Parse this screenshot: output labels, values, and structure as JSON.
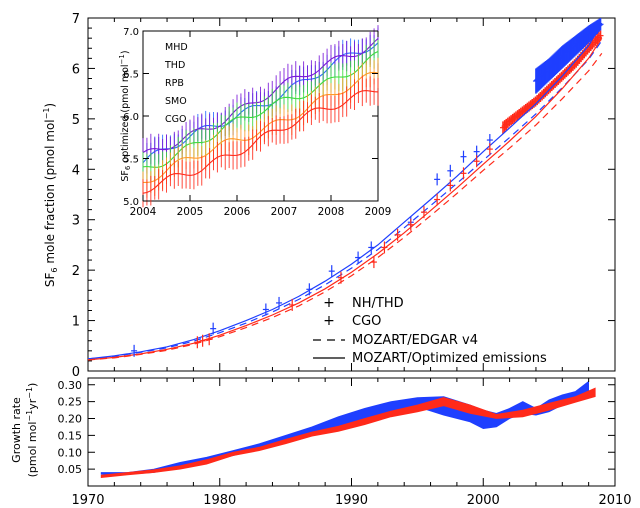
{
  "chart_data": [
    {
      "panel": "main",
      "type": "line",
      "ylabel_main": "SF",
      "ylabel_sub": "6",
      "ylabel_rest": " mole fraction (pmol mol",
      "ylabel_sup": "−1",
      "ylabel_close": ")",
      "xlim": [
        1970,
        2010
      ],
      "ylim": [
        0,
        7
      ],
      "yticks": [
        "0",
        "1",
        "2",
        "3",
        "4",
        "5",
        "6",
        "7"
      ],
      "colors": {
        "nh": "#1f3fff",
        "cgo": "#ff2a1a",
        "model": "#000000"
      },
      "legend": [
        {
          "label": "NH/THD",
          "marker": "+",
          "color": "#1f3fff"
        },
        {
          "label": "CGO",
          "marker": "+",
          "color": "#ff2a1a"
        },
        {
          "label": "MOZART/EDGAR v4",
          "marker": "dashed",
          "color": "#000000"
        },
        {
          "label": "MOZART/Optimized emissions",
          "marker": "solid",
          "color": "#000000"
        }
      ],
      "series": [
        {
          "key": "nh_opt",
          "style": "solid",
          "color": "#1f3fff",
          "x": [
            1970,
            1972,
            1974,
            1976,
            1978,
            1980,
            1982,
            1984,
            1986,
            1988,
            1990,
            1992,
            1994,
            1996,
            1998,
            2000,
            2002,
            2004,
            2006,
            2008,
            2009
          ],
          "y": [
            0.24,
            0.3,
            0.38,
            0.48,
            0.62,
            0.8,
            1.0,
            1.22,
            1.48,
            1.78,
            2.12,
            2.5,
            2.95,
            3.4,
            3.86,
            4.35,
            4.82,
            5.3,
            5.85,
            6.45,
            6.9
          ]
        },
        {
          "key": "nh_edgar",
          "style": "dashed",
          "color": "#1f3fff",
          "x": [
            1970,
            1972,
            1974,
            1976,
            1978,
            1980,
            1982,
            1984,
            1986,
            1988,
            1990,
            1992,
            1994,
            1996,
            1998,
            2000,
            2002,
            2004,
            2006,
            2008,
            2009
          ],
          "y": [
            0.24,
            0.29,
            0.37,
            0.46,
            0.59,
            0.76,
            0.95,
            1.17,
            1.42,
            1.71,
            2.04,
            2.41,
            2.84,
            3.28,
            3.72,
            4.18,
            4.63,
            5.1,
            5.62,
            6.18,
            6.55
          ]
        },
        {
          "key": "cgo_opt",
          "style": "solid",
          "color": "#ff2a1a",
          "x": [
            1970,
            1972,
            1974,
            1976,
            1978,
            1980,
            1982,
            1984,
            1986,
            1988,
            1990,
            1992,
            1994,
            1996,
            1998,
            2000,
            2002,
            2004,
            2006,
            2008,
            2009
          ],
          "y": [
            0.22,
            0.27,
            0.34,
            0.43,
            0.55,
            0.71,
            0.9,
            1.11,
            1.35,
            1.63,
            1.96,
            2.33,
            2.74,
            3.18,
            3.63,
            4.1,
            4.56,
            5.05,
            5.6,
            6.2,
            6.6
          ]
        },
        {
          "key": "cgo_edgar",
          "style": "dashed",
          "color": "#ff2a1a",
          "x": [
            1970,
            1972,
            1974,
            1976,
            1978,
            1980,
            1982,
            1984,
            1986,
            1988,
            1990,
            1992,
            1994,
            1996,
            1998,
            2000,
            2002,
            2004,
            2006,
            2008,
            2009
          ],
          "y": [
            0.22,
            0.26,
            0.33,
            0.41,
            0.53,
            0.68,
            0.86,
            1.06,
            1.29,
            1.57,
            1.89,
            2.25,
            2.65,
            3.08,
            3.52,
            3.98,
            4.42,
            4.88,
            5.4,
            5.95,
            6.3
          ]
        }
      ],
      "obs_nh": {
        "x": [
          1973.5,
          1979.5,
          1983.5,
          1984.5,
          1986.8,
          1988.5,
          1990.5,
          1991.5,
          1994.5,
          1996.5,
          1997.5,
          1998.5,
          1999.5,
          2000.5
        ],
        "y": [
          0.4,
          0.84,
          1.22,
          1.35,
          1.62,
          1.98,
          2.25,
          2.45,
          2.95,
          3.8,
          3.97,
          4.25,
          4.35,
          4.58
        ]
      },
      "obs_cgo": {
        "x": [
          1978.3,
          1978.7,
          1979.2,
          1985.5,
          1989.2,
          1991.7,
          1992.5,
          1993.5,
          1994.5,
          1995.5,
          1996.5,
          1997.5,
          1998.5,
          1999.5,
          2000.5
        ],
        "y": [
          0.57,
          0.6,
          0.63,
          1.31,
          1.85,
          2.16,
          2.45,
          2.7,
          2.9,
          3.15,
          3.4,
          3.68,
          3.92,
          4.16,
          4.4
        ]
      },
      "obs_nh_band": {
        "x": [
          2004,
          2005,
          2006,
          2007,
          2008,
          2008.9
        ],
        "lo": [
          5.5,
          5.75,
          6.0,
          6.25,
          6.5,
          6.75
        ],
        "hi": [
          6.0,
          6.2,
          6.45,
          6.65,
          6.85,
          7.0
        ]
      },
      "obs_cgo_band": {
        "x": [
          2001.5,
          2002,
          2003,
          2004,
          2005,
          2006,
          2007,
          2008,
          2008.9
        ],
        "lo": [
          4.7,
          4.85,
          5.05,
          5.25,
          5.5,
          5.75,
          6.0,
          6.3,
          6.55
        ],
        "hi": [
          4.95,
          5.05,
          5.25,
          5.45,
          5.7,
          5.95,
          6.2,
          6.5,
          6.75
        ]
      }
    },
    {
      "panel": "inset",
      "type": "line",
      "ylabel_main": "SF",
      "ylabel_sub": "6",
      "ylabel_rest": " optimized (pmol mol",
      "ylabel_sup": "−1",
      "ylabel_close": ")",
      "xlim": [
        2004,
        2009
      ],
      "ylim": [
        5.0,
        7.0
      ],
      "xticks": [
        "2004",
        "2005",
        "2006",
        "2007",
        "2008",
        "2009"
      ],
      "yticks": [
        "5.0",
        "5.5",
        "6.0",
        "6.5",
        "7.0"
      ],
      "legend": [
        {
          "label": "MHD",
          "color": "#2a6cff"
        },
        {
          "label": "THD",
          "color": "#7a18d8"
        },
        {
          "label": "RPB",
          "color": "#3ddc3d"
        },
        {
          "label": "SMO",
          "color": "#ff9a2a"
        },
        {
          "label": "CGO",
          "color": "#ff2a1a"
        }
      ],
      "series": [
        {
          "name": "MHD",
          "color": "#2a6cff",
          "start": 5.45,
          "end": 6.85
        },
        {
          "name": "THD",
          "color": "#7a18d8",
          "start": 5.5,
          "end": 6.9
        },
        {
          "name": "RPB",
          "color": "#3ddc3d",
          "start": 5.38,
          "end": 6.7
        },
        {
          "name": "SMO",
          "color": "#ff9a2a",
          "start": 5.22,
          "end": 6.48
        },
        {
          "name": "CGO",
          "color": "#ff2a1a",
          "start": 5.1,
          "end": 6.35
        }
      ]
    },
    {
      "panel": "growth",
      "type": "area",
      "ylabel_line1": "Growth rate",
      "ylabel_line2_main": "(pmol mol",
      "ylabel_line2_sup1": "−1",
      "ylabel_line2_mid": "yr",
      "ylabel_line2_sup2": "−1",
      "ylabel_line2_close": ")",
      "xlim": [
        1970,
        2010
      ],
      "ylim": [
        0.0,
        0.32
      ],
      "xticks": [
        "1970",
        "1980",
        "1990",
        "2000",
        "2010"
      ],
      "yticks": [
        "0.05",
        "0.10",
        "0.15",
        "0.20",
        "0.25",
        "0.30"
      ],
      "series": [
        {
          "name": "NH",
          "color": "#1f3fff",
          "x": [
            1971,
            1973,
            1975,
            1977,
            1979,
            1981,
            1983,
            1985,
            1987,
            1989,
            1991,
            1993,
            1995,
            1997,
            1999,
            2000,
            2001,
            2002,
            2003,
            2004,
            2005,
            2006,
            2007,
            2008
          ],
          "lo": [
            0.035,
            0.035,
            0.04,
            0.055,
            0.07,
            0.09,
            0.11,
            0.13,
            0.15,
            0.175,
            0.2,
            0.22,
            0.235,
            0.21,
            0.19,
            0.17,
            0.175,
            0.2,
            0.215,
            0.21,
            0.22,
            0.24,
            0.25,
            0.27
          ],
          "hi": [
            0.04,
            0.04,
            0.05,
            0.07,
            0.085,
            0.105,
            0.125,
            0.15,
            0.175,
            0.205,
            0.23,
            0.25,
            0.262,
            0.265,
            0.24,
            0.225,
            0.215,
            0.23,
            0.25,
            0.23,
            0.255,
            0.27,
            0.28,
            0.31
          ]
        },
        {
          "name": "CGO",
          "color": "#ff2a1a",
          "x": [
            1971,
            1973,
            1975,
            1977,
            1979,
            1981,
            1983,
            1985,
            1987,
            1989,
            1991,
            1993,
            1995,
            1997,
            1999,
            2001,
            2003,
            2005,
            2007,
            2008.5
          ],
          "lo": [
            0.025,
            0.033,
            0.04,
            0.05,
            0.065,
            0.09,
            0.105,
            0.125,
            0.148,
            0.162,
            0.182,
            0.205,
            0.22,
            0.238,
            0.215,
            0.2,
            0.205,
            0.225,
            0.248,
            0.265
          ],
          "hi": [
            0.032,
            0.04,
            0.048,
            0.06,
            0.078,
            0.1,
            0.115,
            0.138,
            0.16,
            0.177,
            0.2,
            0.222,
            0.24,
            0.262,
            0.24,
            0.212,
            0.225,
            0.245,
            0.265,
            0.29
          ]
        }
      ]
    }
  ]
}
